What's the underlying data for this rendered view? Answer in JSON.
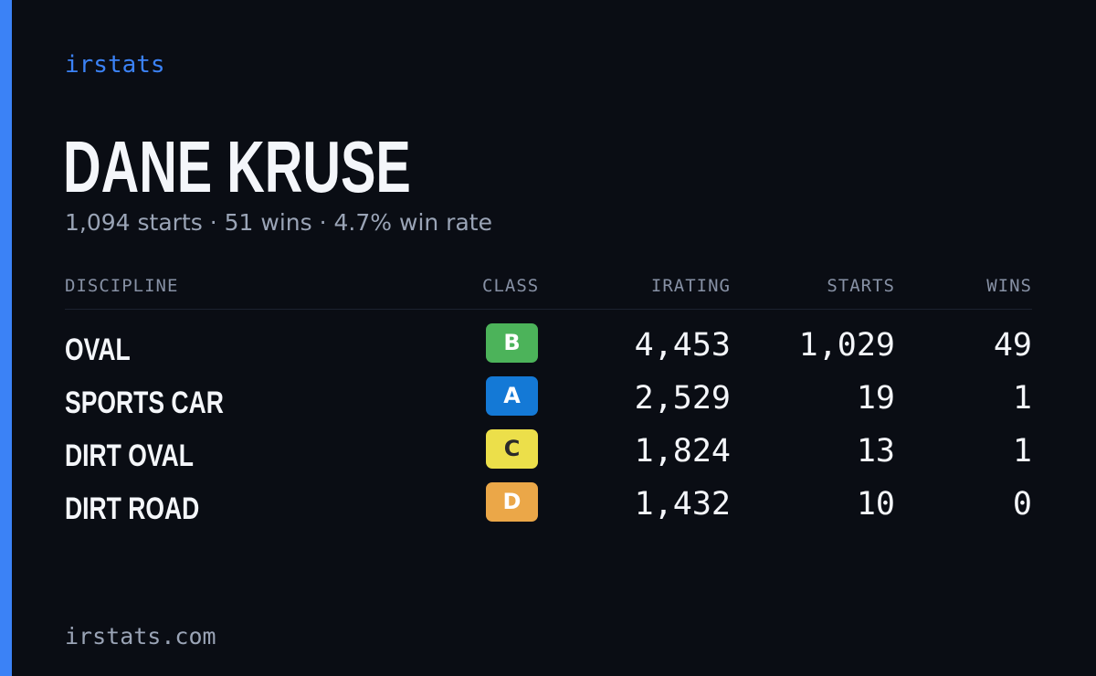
{
  "brand": "irstats",
  "driver": {
    "name": "DANE KRUSE"
  },
  "summary": {
    "starts": "1,094 starts",
    "wins": "51 wins",
    "win_rate": "4.7% win rate",
    "separator": "·"
  },
  "table": {
    "headers": {
      "discipline": "DISCIPLINE",
      "class": "CLASS",
      "irating": "IRATING",
      "starts": "STARTS",
      "wins": "WINS"
    },
    "rows": [
      {
        "discipline": "OVAL",
        "class": "B",
        "class_bg": "#4cb35a",
        "class_fg": "#ffffff",
        "irating": "4,453",
        "starts": "1,029",
        "wins": "49"
      },
      {
        "discipline": "SPORTS CAR",
        "class": "A",
        "class_bg": "#1479d6",
        "class_fg": "#ffffff",
        "irating": "2,529",
        "starts": "19",
        "wins": "1"
      },
      {
        "discipline": "DIRT OVAL",
        "class": "C",
        "class_bg": "#ecdf4a",
        "class_fg": "#2a2a2a",
        "irating": "1,824",
        "starts": "13",
        "wins": "1"
      },
      {
        "discipline": "DIRT ROAD",
        "class": "D",
        "class_bg": "#eba748",
        "class_fg": "#ffffff",
        "irating": "1,432",
        "starts": "10",
        "wins": "0"
      }
    ]
  },
  "footer": "irstats.com",
  "colors": {
    "accent": "#3b82f6",
    "background": "#0a0d14",
    "text": "#f4f6fa",
    "muted": "#9aa4b6"
  }
}
